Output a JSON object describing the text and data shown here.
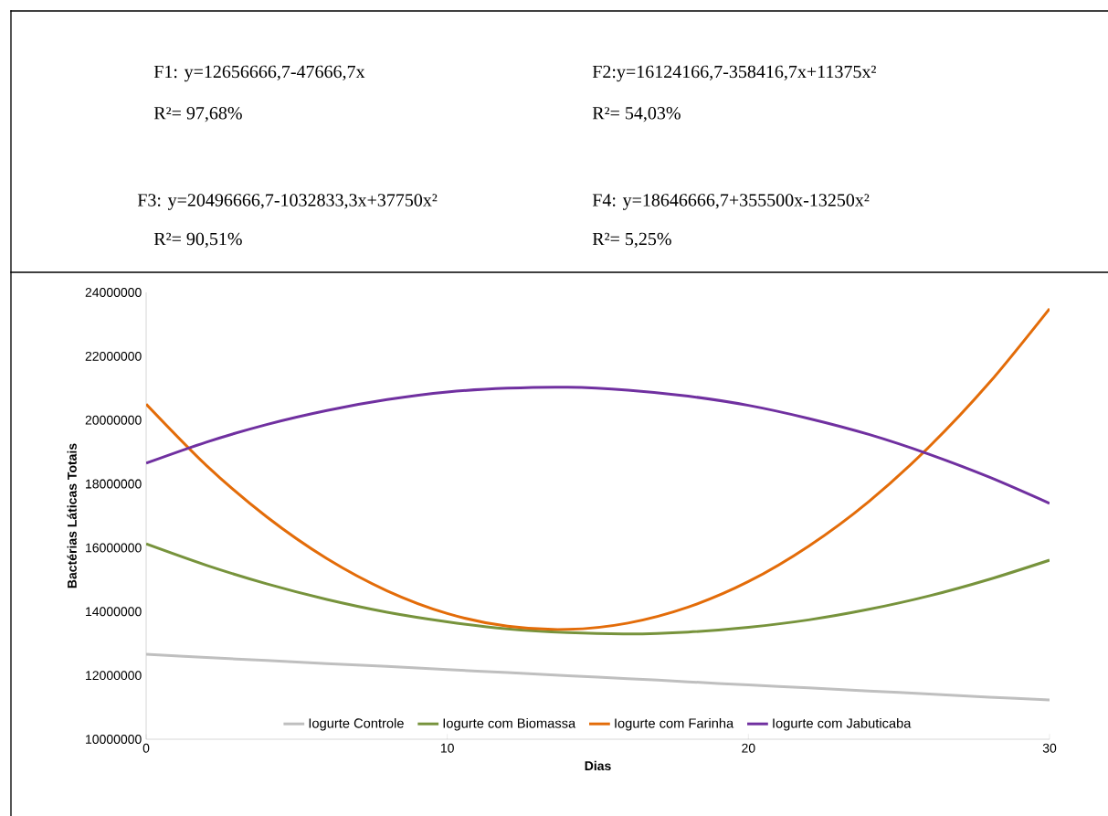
{
  "chart_data": {
    "type": "line",
    "xlabel": "Dias",
    "ylabel": "Bactérias Láticas Totais",
    "x": [
      0,
      2,
      4,
      6,
      8,
      10,
      12,
      14,
      16,
      18,
      20,
      22,
      24,
      26,
      28,
      30
    ],
    "series": [
      {
        "name": "Iogurte Controle",
        "color": "#bfbfbf",
        "values": [
          12660000,
          12560000,
          12470000,
          12370000,
          12280000,
          12180000,
          12090000,
          11990000,
          11900000,
          11800000,
          11700000,
          11610000,
          11510000,
          11420000,
          11320000,
          11230000
        ]
      },
      {
        "name": "Iogurte com Biomassa",
        "color": "#77933c",
        "values": [
          16120000,
          15450000,
          14870000,
          14380000,
          13980000,
          13680000,
          13460000,
          13340000,
          13300000,
          13360000,
          13510000,
          13740000,
          14070000,
          14490000,
          15010000,
          15610000
        ]
      },
      {
        "name": "Iogurte com Farinha",
        "color": "#e36c09",
        "values": [
          20500000,
          18580000,
          16970000,
          15660000,
          14650000,
          13940000,
          13540000,
          13440000,
          13640000,
          14140000,
          14940000,
          16050000,
          17450000,
          19160000,
          21170000,
          23490000
        ]
      },
      {
        "name": "Iogurte com Jabuticaba",
        "color": "#7030a0",
        "values": [
          18650000,
          19310000,
          19860000,
          20300000,
          20640000,
          20880000,
          21000000,
          21030000,
          20940000,
          20750000,
          20460000,
          20050000,
          19550000,
          18930000,
          18210000,
          17390000
        ]
      }
    ],
    "xlim": [
      0,
      30
    ],
    "xticks": [
      0,
      10,
      20,
      30
    ],
    "ylim": [
      10000000,
      24000000
    ],
    "yticks": [
      10000000,
      12000000,
      14000000,
      16000000,
      18000000,
      20000000,
      22000000,
      24000000
    ],
    "grid": false,
    "legend": "bottom",
    "marker": "none",
    "line_style": "solid",
    "annotations": [
      "F1: y=12656666,7-47666,7x",
      "R²= 97,68%",
      "F2:y=16124166,7-358416,7x+11375x²",
      "R²= 54,03%",
      "F3: y=20496666,7-1032833,3x+37750x²",
      "R²= 90,51%",
      "F4: y=18646666,7+355500x-13250x²",
      "R²= 5,25%"
    ]
  }
}
